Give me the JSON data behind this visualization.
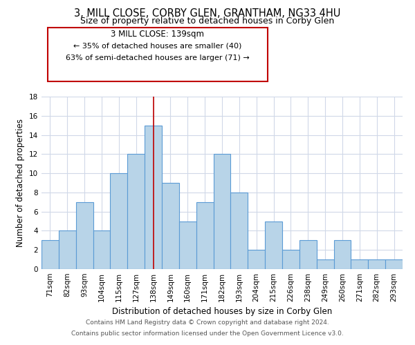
{
  "title": "3, MILL CLOSE, CORBY GLEN, GRANTHAM, NG33 4HU",
  "subtitle": "Size of property relative to detached houses in Corby Glen",
  "xlabel": "Distribution of detached houses by size in Corby Glen",
  "ylabel": "Number of detached properties",
  "bar_color": "#b8d4e8",
  "bar_edge_color": "#5b9bd5",
  "highlight_line_color": "#c00000",
  "background_color": "#ffffff",
  "grid_color": "#d0d8e8",
  "categories": [
    "71sqm",
    "82sqm",
    "93sqm",
    "104sqm",
    "115sqm",
    "127sqm",
    "138sqm",
    "149sqm",
    "160sqm",
    "171sqm",
    "182sqm",
    "193sqm",
    "204sqm",
    "215sqm",
    "226sqm",
    "238sqm",
    "249sqm",
    "260sqm",
    "271sqm",
    "282sqm",
    "293sqm"
  ],
  "values": [
    3,
    4,
    7,
    4,
    10,
    12,
    15,
    9,
    5,
    7,
    12,
    8,
    2,
    5,
    2,
    3,
    1,
    3,
    1,
    1,
    1
  ],
  "ylim": [
    0,
    18
  ],
  "yticks": [
    0,
    2,
    4,
    6,
    8,
    10,
    12,
    14,
    16,
    18
  ],
  "highlight_index": 6,
  "annotation_title": "3 MILL CLOSE: 139sqm",
  "annotation_line1": "← 35% of detached houses are smaller (40)",
  "annotation_line2": "63% of semi-detached houses are larger (71) →",
  "annotation_box_color": "#ffffff",
  "annotation_border_color": "#c00000",
  "footer_line1": "Contains HM Land Registry data © Crown copyright and database right 2024.",
  "footer_line2": "Contains public sector information licensed under the Open Government Licence v3.0.",
  "title_fontsize": 10.5,
  "subtitle_fontsize": 9,
  "annotation_title_fontsize": 8.5,
  "annotation_body_fontsize": 8,
  "footer_fontsize": 6.5,
  "xlabel_fontsize": 8.5,
  "ylabel_fontsize": 8.5,
  "tick_fontsize": 7.5
}
